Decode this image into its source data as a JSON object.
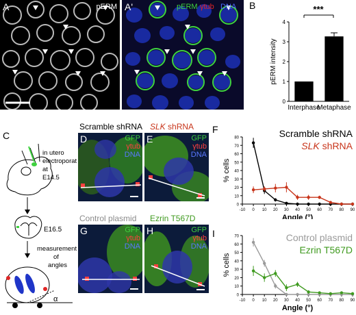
{
  "colors": {
    "erm_green": "#3fd23f",
    "dna_blue": "#1f35c8",
    "tub_red": "#e02424",
    "scramble_black": "#000000",
    "slk_red": "#c8351b",
    "control_gray": "#9a9a9a",
    "ezrin_green": "#3f9a1f"
  },
  "panels": {
    "A": {
      "label": "A",
      "marker": "pERM"
    },
    "A2": {
      "label": "A'",
      "marker_erm": "pERM",
      "marker_tub": "γtub",
      "marker_dna": "DNA"
    },
    "B": {
      "label": "B",
      "significance": "***"
    },
    "C": {
      "label": "C",
      "step1": "in utero\nelectroporation\nat\nE14.5",
      "step2": "E16.5",
      "step3": "measurement\nof\nangles",
      "alpha": "α"
    },
    "D": {
      "label": "D",
      "title": "Scramble shRNA",
      "m_gfp": "GFP",
      "m_tub": "γtub",
      "m_dna": "DNA"
    },
    "E": {
      "label": "E",
      "title_gene": "SLK",
      "title_rest": " shRNA",
      "m_gfp": "GFP",
      "m_tub": "γtub",
      "m_dna": "DNA"
    },
    "G": {
      "label": "G",
      "title": "Control plasmid",
      "m_gfp": "GFP",
      "m_tub": "γtub",
      "m_dna": "DNA"
    },
    "H": {
      "label": "H",
      "title": "Ezrin T567D",
      "m_gfp": "GFP",
      "m_tub": "γtub",
      "m_dna": "DNA"
    },
    "F": {
      "label": "F"
    },
    "I": {
      "label": "I"
    }
  },
  "chart_data": [
    {
      "type": "bar",
      "panel": "B",
      "categories": [
        "Interphase",
        "Metaphase"
      ],
      "values": [
        1.0,
        3.27
      ],
      "errors": [
        0,
        0.18
      ],
      "ylabel": "pERM intensity",
      "xlabel": "",
      "ylim": [
        0,
        4
      ],
      "yticks": [
        0,
        1,
        2,
        3,
        4
      ]
    },
    {
      "type": "line",
      "panel": "F",
      "x": [
        0,
        10,
        20,
        30,
        40,
        50,
        60,
        70,
        80,
        90
      ],
      "series": [
        {
          "name": "Scramble shRNA",
          "values": [
            73,
            16,
            5,
            1,
            0,
            0,
            0,
            0,
            0,
            0
          ],
          "errors": [
            6,
            4,
            2,
            1,
            0,
            0,
            0,
            0,
            0,
            0
          ]
        },
        {
          "name": "SLK shRNA",
          "values": [
            17,
            18,
            19,
            20,
            8,
            8,
            8,
            2,
            0,
            0
          ],
          "errors": [
            4,
            3,
            5,
            6,
            3,
            3,
            2,
            1,
            0,
            0
          ]
        }
      ],
      "legend": [
        "Scramble shRNA",
        "SLK shRNA"
      ],
      "legend_gene": "SLK",
      "legend_rest": " shRNA",
      "xlabel": "Angle (°)",
      "ylabel": "% cells",
      "xlim": [
        -10,
        90
      ],
      "ylim": [
        0,
        80
      ],
      "xticks": [
        -10,
        0,
        10,
        20,
        30,
        40,
        50,
        60,
        70,
        80,
        90
      ],
      "yticks": [
        0,
        10,
        20,
        30,
        40,
        50,
        60,
        70,
        80
      ]
    },
    {
      "type": "line",
      "panel": "I",
      "x": [
        0,
        10,
        20,
        30,
        40,
        50,
        60,
        70,
        80,
        90
      ],
      "series": [
        {
          "name": "Control plasmid",
          "values": [
            62,
            37,
            10,
            0,
            0,
            0,
            0,
            0,
            0,
            0
          ],
          "errors": [
            5,
            4,
            3,
            0,
            0,
            0,
            0,
            0,
            0,
            0
          ]
        },
        {
          "name": "Ezrin T567D",
          "values": [
            28,
            20,
            25,
            8,
            12,
            3,
            2,
            1,
            2,
            1
          ],
          "errors": [
            6,
            5,
            4,
            4,
            3,
            2,
            1,
            1,
            1,
            1
          ]
        }
      ],
      "legend": [
        "Control plasmid",
        "Ezrin T567D"
      ],
      "xlabel": "Angle (°)",
      "ylabel": "% cells",
      "xlim": [
        -10,
        90
      ],
      "ylim": [
        0,
        70
      ],
      "xticks": [
        -10,
        0,
        10,
        20,
        30,
        40,
        50,
        60,
        70,
        80,
        90
      ],
      "yticks": [
        0,
        10,
        20,
        30,
        40,
        50,
        60,
        70
      ]
    }
  ]
}
